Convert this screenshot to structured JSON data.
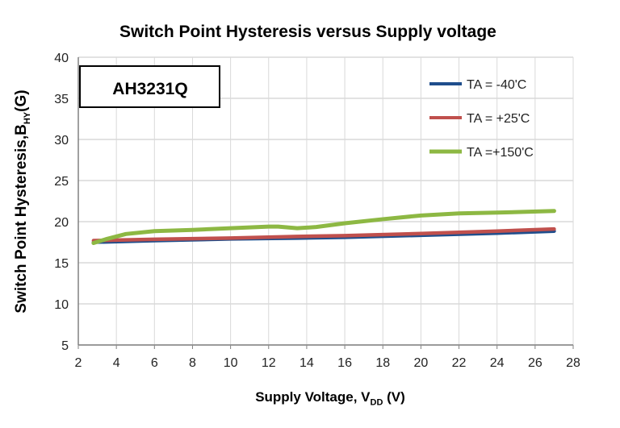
{
  "chart_data": {
    "type": "line",
    "title": "Switch Point Hysteresis versus Supply voltage",
    "xlabel": "Supply Voltage, V",
    "xlabel_sub": "DD",
    "xlabel_unit": " (V)",
    "ylabel": "Switch Point  Hysteresis,B",
    "ylabel_sub": "HY",
    "ylabel_unit": "(G)",
    "annotation": "AH3231Q",
    "xlim": [
      2,
      28
    ],
    "ylim": [
      5,
      40
    ],
    "xticks": [
      2,
      4,
      6,
      8,
      10,
      12,
      14,
      16,
      18,
      20,
      22,
      24,
      26,
      28
    ],
    "yticks": [
      5,
      10,
      15,
      20,
      25,
      30,
      35,
      40
    ],
    "grid": true,
    "legend_position": "top-right",
    "series": [
      {
        "name": "TA = -40'C",
        "color": "#1f4e8c",
        "x": [
          2.8,
          6,
          10,
          13.5,
          16,
          20,
          24,
          27
        ],
        "y": [
          17.5,
          17.7,
          17.9,
          18.0,
          18.1,
          18.35,
          18.6,
          18.85
        ]
      },
      {
        "name": "TA = +25'C",
        "color": "#c0504d",
        "x": [
          2.8,
          6,
          10,
          13.5,
          16,
          20,
          24,
          27
        ],
        "y": [
          17.7,
          17.85,
          18.0,
          18.2,
          18.3,
          18.55,
          18.85,
          19.1
        ]
      },
      {
        "name": "TA =+150'C",
        "color": "#8db843",
        "x": [
          2.8,
          3.5,
          4.5,
          6,
          8,
          10,
          12,
          12.5,
          13.5,
          14.5,
          16,
          18,
          20,
          22,
          24,
          27
        ],
        "y": [
          17.4,
          17.9,
          18.5,
          18.85,
          19.0,
          19.2,
          19.4,
          19.4,
          19.2,
          19.35,
          19.8,
          20.3,
          20.75,
          21.0,
          21.1,
          21.3
        ]
      }
    ]
  }
}
